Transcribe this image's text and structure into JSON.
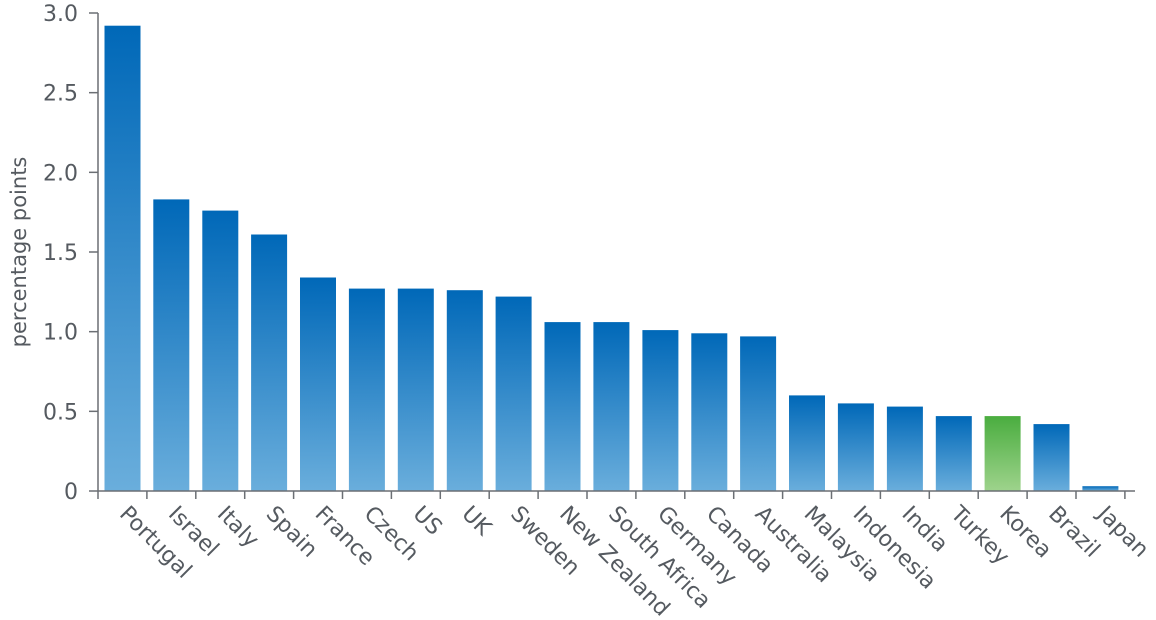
{
  "chart_data": {
    "type": "bar",
    "ylabel": "percentage points",
    "ylim": [
      0,
      3.0
    ],
    "yticks": [
      "0",
      "0.5",
      "1.0",
      "1.5",
      "2.0",
      "2.5",
      "3.0"
    ],
    "categories": [
      "Portugal",
      "Israel",
      "Italy",
      "Spain",
      "France",
      "Czech",
      "US",
      "UK",
      "Sweden",
      "New Zealand",
      "South Africa",
      "Germany",
      "Canada",
      "Australia",
      "Malaysia",
      "Indonesia",
      "India",
      "Turkey",
      "Korea",
      "Brazil",
      "Japan"
    ],
    "values": [
      2.92,
      1.83,
      1.76,
      1.61,
      1.34,
      1.27,
      1.27,
      1.26,
      1.22,
      1.06,
      1.06,
      1.01,
      0.99,
      0.97,
      0.6,
      0.55,
      0.53,
      0.47,
      0.47,
      0.42,
      0.03
    ],
    "highlight": "Korea",
    "colors": {
      "bar_top": "#0068b8",
      "bar_bottom": "#6aaedc",
      "highlight_top": "#4aad3f",
      "highlight_bottom": "#9ed38c",
      "axis": "#6b6f74",
      "text": "#555a60"
    },
    "grid": false
  }
}
